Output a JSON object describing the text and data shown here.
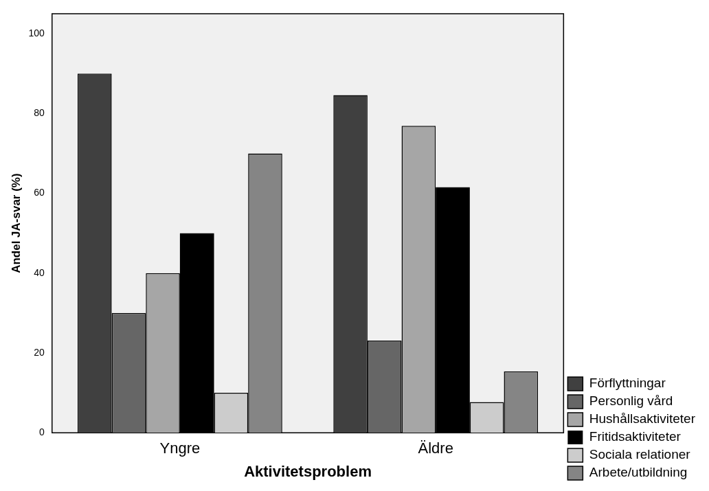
{
  "chart_data": {
    "type": "bar",
    "xlabel": "Aktivitetsproblem",
    "ylabel": "Andel JA-svar (%)",
    "categories": [
      "Yngre",
      "Äldre"
    ],
    "series": [
      {
        "name": "Förflyttningar",
        "color": "#404040",
        "values": [
          90,
          84.6
        ]
      },
      {
        "name": "Personlig vård",
        "color": "#666666",
        "values": [
          30,
          23.1
        ]
      },
      {
        "name": "Hushållsaktiviteter",
        "color": "#a6a6a6",
        "values": [
          40,
          76.9
        ]
      },
      {
        "name": "Fritidsaktiviteter",
        "color": "#000000",
        "values": [
          50,
          61.5
        ]
      },
      {
        "name": "Sociala relationer",
        "color": "#cccccc",
        "values": [
          10,
          7.7
        ]
      },
      {
        "name": "Arbete/utbildning",
        "color": "#858585",
        "values": [
          70,
          15.4
        ]
      }
    ],
    "ylim": [
      0,
      105
    ],
    "yticks": [
      0,
      20,
      40,
      60,
      80,
      100
    ],
    "grid": false,
    "legend": "right"
  }
}
